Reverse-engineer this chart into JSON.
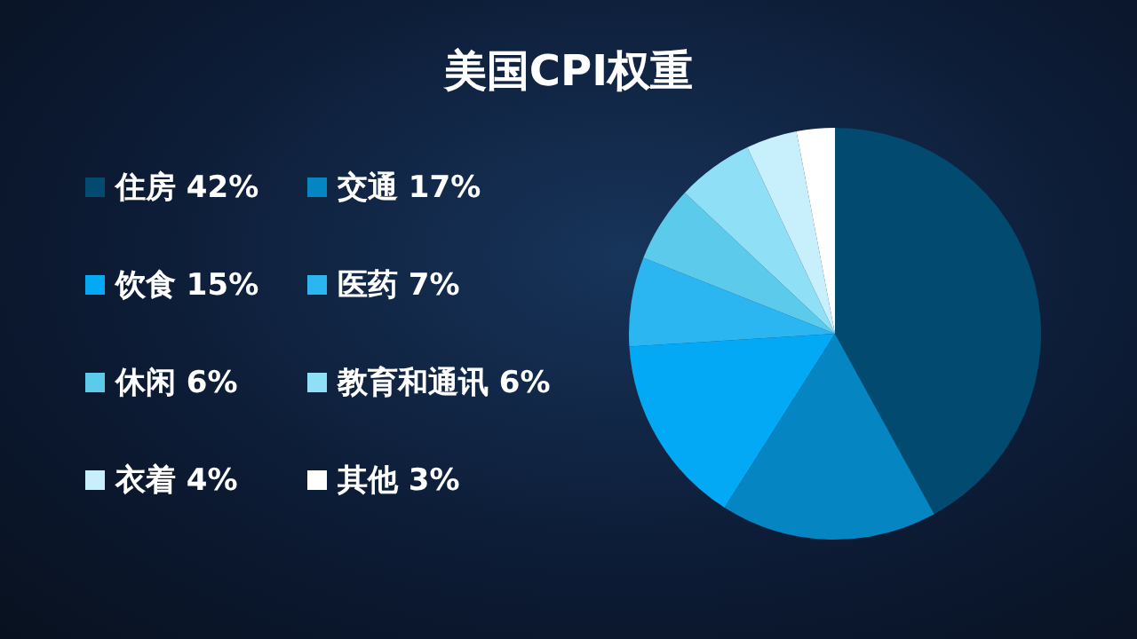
{
  "chart_data": {
    "type": "pie",
    "title": "美国CPI权重",
    "categories": [
      "住房",
      "交通",
      "饮食",
      "医药",
      "休闲",
      "教育和通讯",
      "衣着",
      "其他"
    ],
    "values": [
      42,
      17,
      15,
      7,
      6,
      6,
      4,
      3
    ],
    "colors": [
      "#034a70",
      "#0585c2",
      "#03a9f4",
      "#2bb6f2",
      "#5ccbeb",
      "#8fdff7",
      "#c8effc",
      "#ffffff"
    ],
    "value_labels": [
      "42%",
      "17%",
      "15%",
      "7%",
      "6%",
      "6%",
      "4%",
      "3%"
    ],
    "legend": "left"
  }
}
